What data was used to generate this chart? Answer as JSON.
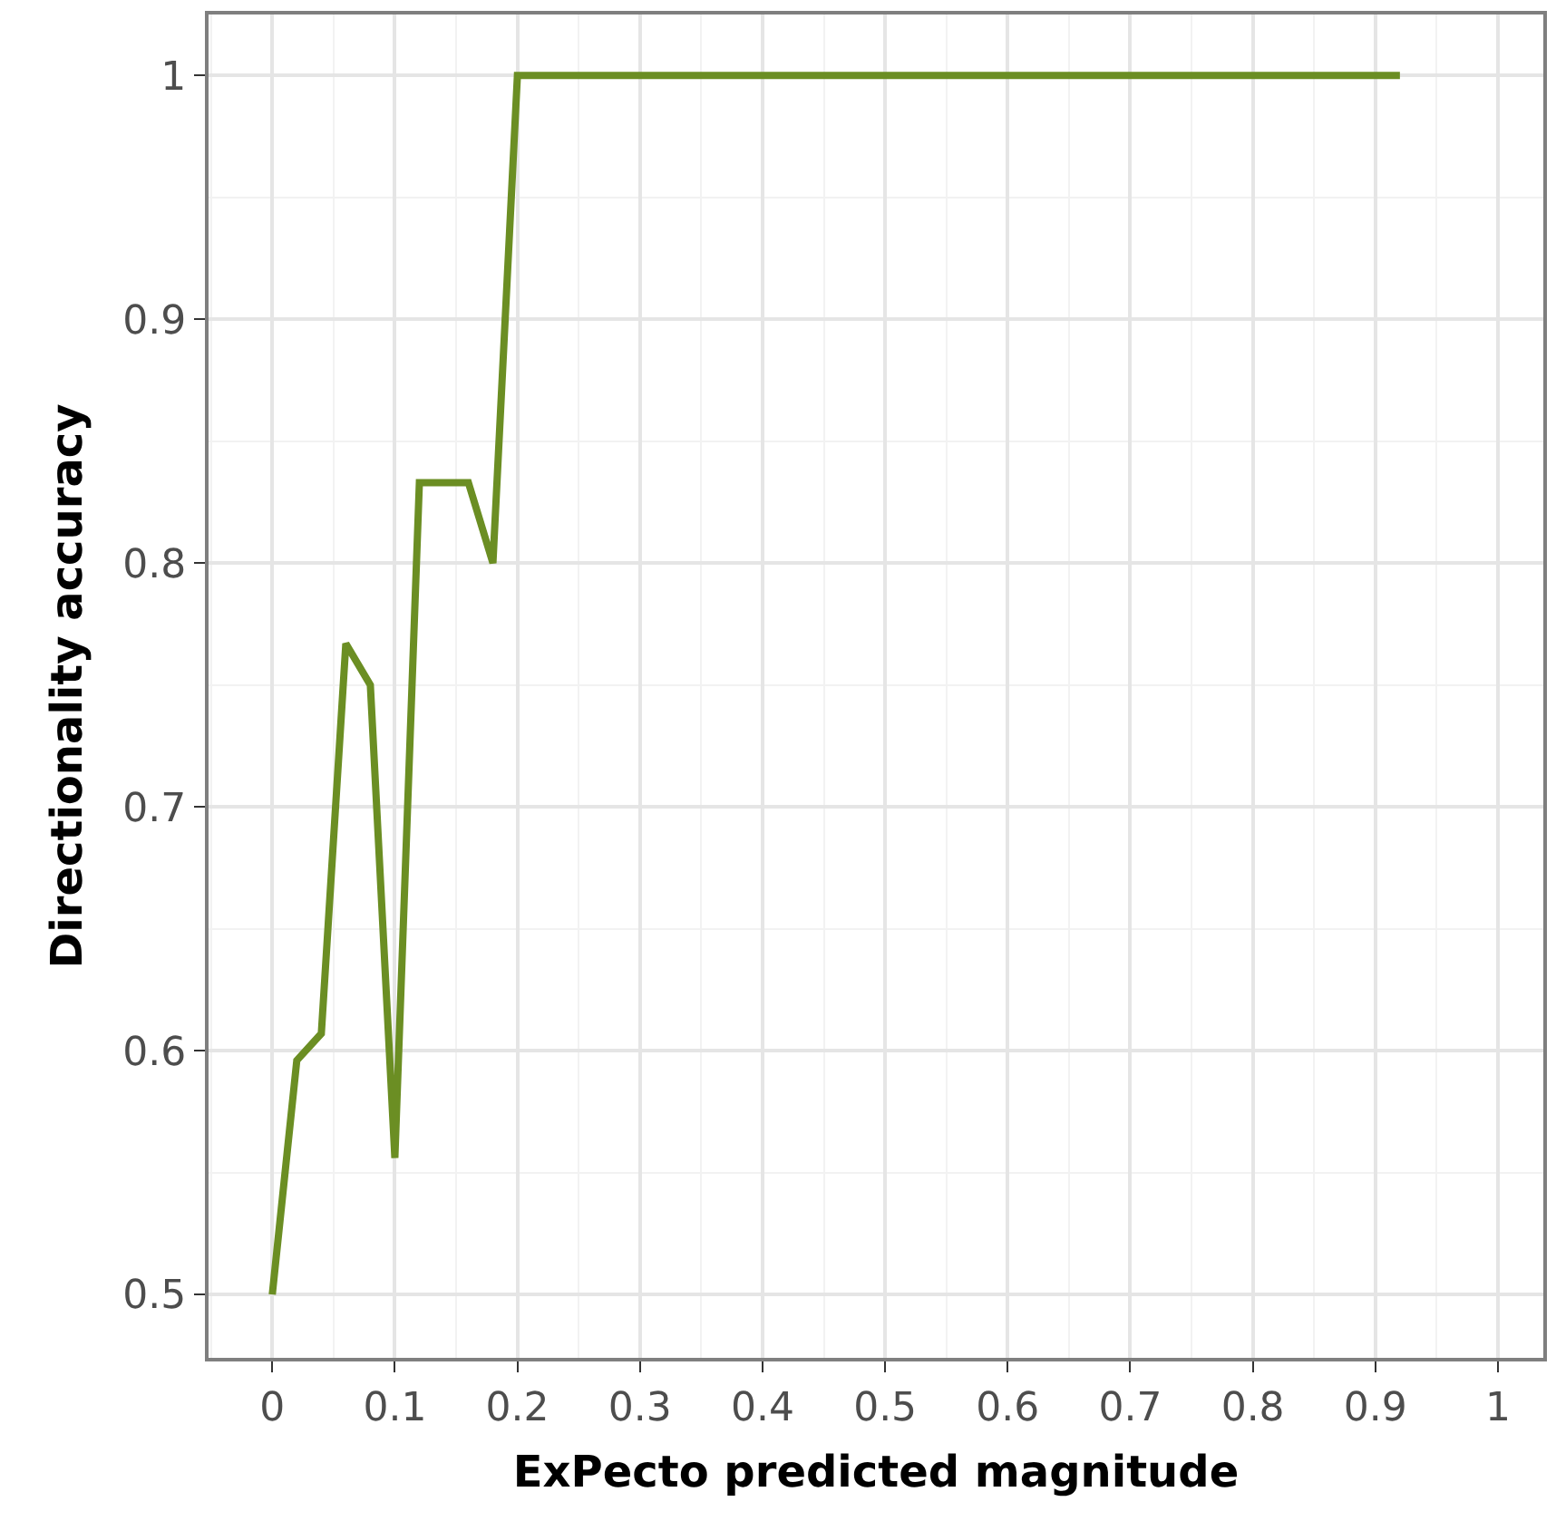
{
  "chart_data": {
    "type": "line",
    "xlabel": "ExPecto predicted magnitude",
    "ylabel": "Directionality accuracy",
    "x": [
      0,
      0.02,
      0.04,
      0.06,
      0.08,
      0.1,
      0.12,
      0.14,
      0.16,
      0.18,
      0.2,
      0.92
    ],
    "series": [
      {
        "color": "#6b8e23",
        "values": [
          0.5,
          0.596,
          0.607,
          0.767,
          0.75,
          0.556,
          0.833,
          0.833,
          0.833,
          0.8,
          1,
          1
        ]
      }
    ],
    "xlim": [
      -0.052,
      1.037
    ],
    "ylim": [
      0.474,
      1.025
    ],
    "xticks": [
      0,
      0.1,
      0.2,
      0.3,
      0.4,
      0.5,
      0.6,
      0.7,
      0.8,
      0.9,
      1
    ],
    "yticks": [
      0.5,
      0.6,
      0.7,
      0.8,
      0.9,
      1
    ],
    "grid": true,
    "legend": false,
    "marker": "none",
    "line_style": "solid"
  }
}
